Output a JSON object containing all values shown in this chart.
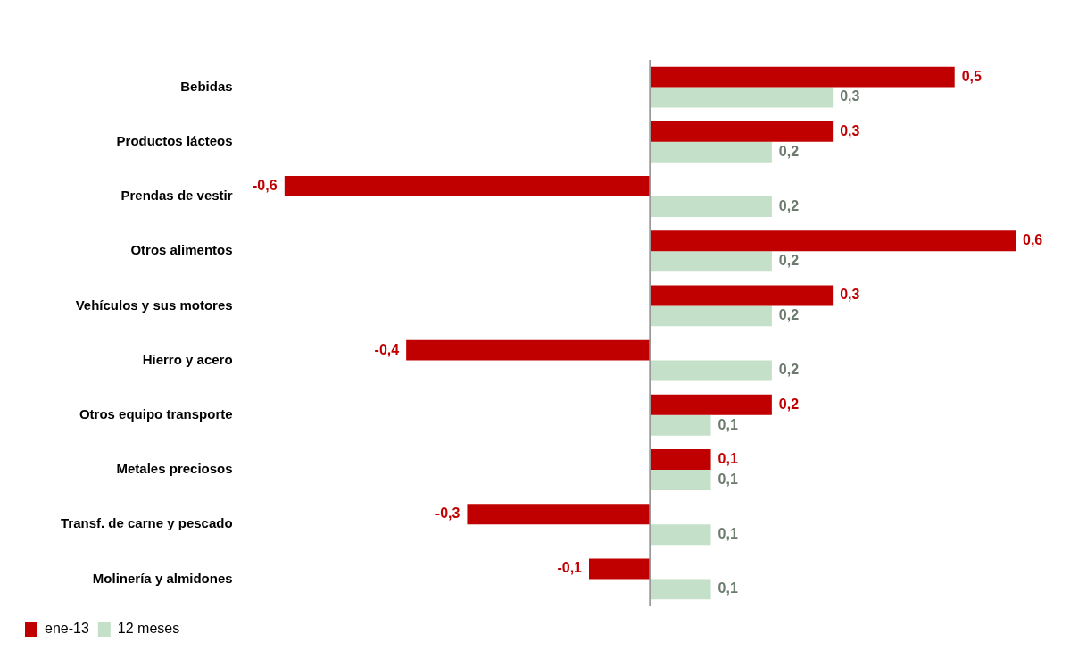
{
  "chart_data": {
    "type": "bar",
    "orientation": "horizontal",
    "categories": [
      "Bebidas",
      "Productos lácteos",
      "Prendas de vestir",
      "Otros alimentos",
      "Vehículos y sus motores",
      "Hierro y acero",
      "Otros equipo transporte",
      "Metales preciosos",
      "Transf. de carne y pescado",
      "Molinería y almidones"
    ],
    "series": [
      {
        "name": "ene-13",
        "color": "#c00000",
        "values": [
          0.5,
          0.3,
          -0.6,
          0.6,
          0.3,
          -0.4,
          0.2,
          0.1,
          -0.3,
          -0.1
        ],
        "value_labels": [
          "0,5",
          "0,3",
          "-0,6",
          "0,6",
          "0,3",
          "-0,4",
          "0,2",
          "0,1",
          "-0,3",
          "-0,1"
        ]
      },
      {
        "name": "12 meses",
        "color": "#c4e0c8",
        "values": [
          0.3,
          0.2,
          0.2,
          0.2,
          0.2,
          0.2,
          0.1,
          0.1,
          0.1,
          0.1
        ],
        "value_labels": [
          "0,3",
          "0,2",
          "0,2",
          "0,2",
          "0,2",
          "0,2",
          "0,1",
          "0,1",
          "0,1",
          "0,1"
        ]
      }
    ],
    "legend": "bottom left",
    "tick_labels": "y",
    "grid": false
  }
}
